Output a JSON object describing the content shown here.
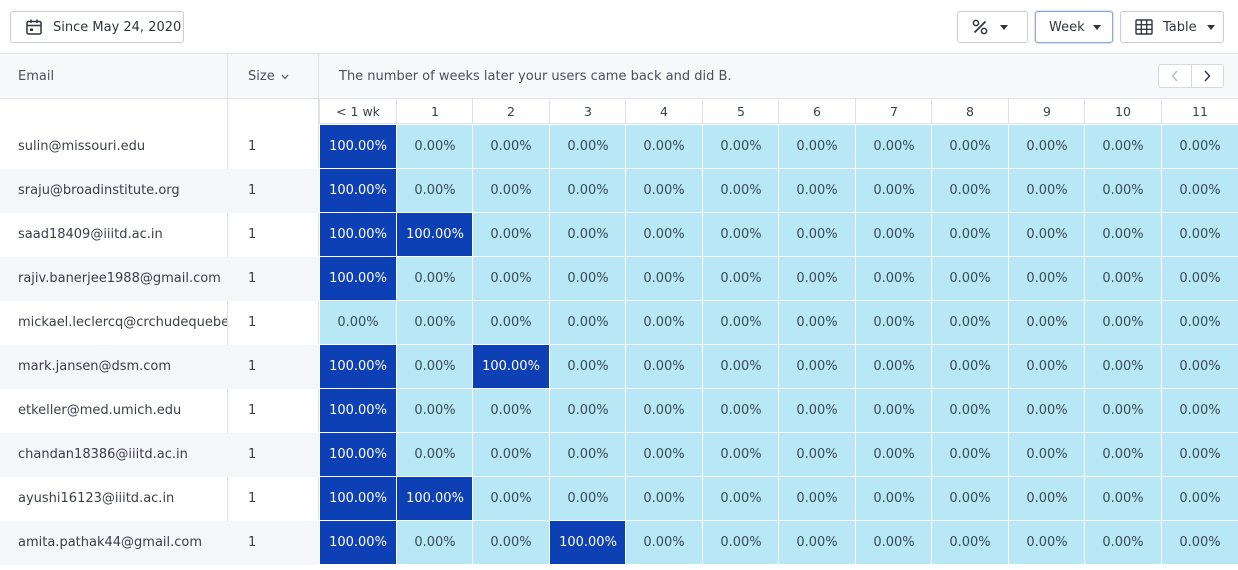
{
  "toolbar": {
    "date_label": "Since May 24, 2020",
    "interval_label": "Week",
    "view_label": "Table"
  },
  "header": {
    "email_label": "Email",
    "size_label": "Size",
    "description": "The number of weeks later your users came back and did B."
  },
  "columns": [
    "< 1 wk",
    "1",
    "2",
    "3",
    "4",
    "5",
    "6",
    "7",
    "8",
    "9",
    "10",
    "11"
  ],
  "colors": {
    "highlight": "#0d3fb5",
    "cell": "#b8e8f5"
  },
  "rows": [
    {
      "email": "sulin@missouri.edu",
      "size": "1",
      "values": [
        "100.00%",
        "0.00%",
        "0.00%",
        "0.00%",
        "0.00%",
        "0.00%",
        "0.00%",
        "0.00%",
        "0.00%",
        "0.00%",
        "0.00%",
        "0.00%"
      ]
    },
    {
      "email": "sraju@broadinstitute.org",
      "size": "1",
      "values": [
        "100.00%",
        "0.00%",
        "0.00%",
        "0.00%",
        "0.00%",
        "0.00%",
        "0.00%",
        "0.00%",
        "0.00%",
        "0.00%",
        "0.00%",
        "0.00%"
      ]
    },
    {
      "email": "saad18409@iiitd.ac.in",
      "size": "1",
      "values": [
        "100.00%",
        "100.00%",
        "0.00%",
        "0.00%",
        "0.00%",
        "0.00%",
        "0.00%",
        "0.00%",
        "0.00%",
        "0.00%",
        "0.00%",
        "0.00%"
      ]
    },
    {
      "email": "rajiv.banerjee1988@gmail.com",
      "size": "1",
      "values": [
        "100.00%",
        "0.00%",
        "0.00%",
        "0.00%",
        "0.00%",
        "0.00%",
        "0.00%",
        "0.00%",
        "0.00%",
        "0.00%",
        "0.00%",
        "0.00%"
      ]
    },
    {
      "email": "mickael.leclercq@crchudequebec",
      "size": "1",
      "values": [
        "0.00%",
        "0.00%",
        "0.00%",
        "0.00%",
        "0.00%",
        "0.00%",
        "0.00%",
        "0.00%",
        "0.00%",
        "0.00%",
        "0.00%",
        "0.00%"
      ]
    },
    {
      "email": "mark.jansen@dsm.com",
      "size": "1",
      "values": [
        "100.00%",
        "0.00%",
        "100.00%",
        "0.00%",
        "0.00%",
        "0.00%",
        "0.00%",
        "0.00%",
        "0.00%",
        "0.00%",
        "0.00%",
        "0.00%"
      ]
    },
    {
      "email": "etkeller@med.umich.edu",
      "size": "1",
      "values": [
        "100.00%",
        "0.00%",
        "0.00%",
        "0.00%",
        "0.00%",
        "0.00%",
        "0.00%",
        "0.00%",
        "0.00%",
        "0.00%",
        "0.00%",
        "0.00%"
      ]
    },
    {
      "email": "chandan18386@iiitd.ac.in",
      "size": "1",
      "values": [
        "100.00%",
        "0.00%",
        "0.00%",
        "0.00%",
        "0.00%",
        "0.00%",
        "0.00%",
        "0.00%",
        "0.00%",
        "0.00%",
        "0.00%",
        "0.00%"
      ]
    },
    {
      "email": "ayushi16123@iiitd.ac.in",
      "size": "1",
      "values": [
        "100.00%",
        "100.00%",
        "0.00%",
        "0.00%",
        "0.00%",
        "0.00%",
        "0.00%",
        "0.00%",
        "0.00%",
        "0.00%",
        "0.00%",
        "0.00%"
      ]
    },
    {
      "email": "amita.pathak44@gmail.com",
      "size": "1",
      "values": [
        "100.00%",
        "0.00%",
        "0.00%",
        "100.00%",
        "0.00%",
        "0.00%",
        "0.00%",
        "0.00%",
        "0.00%",
        "0.00%",
        "0.00%",
        "0.00%"
      ]
    }
  ]
}
